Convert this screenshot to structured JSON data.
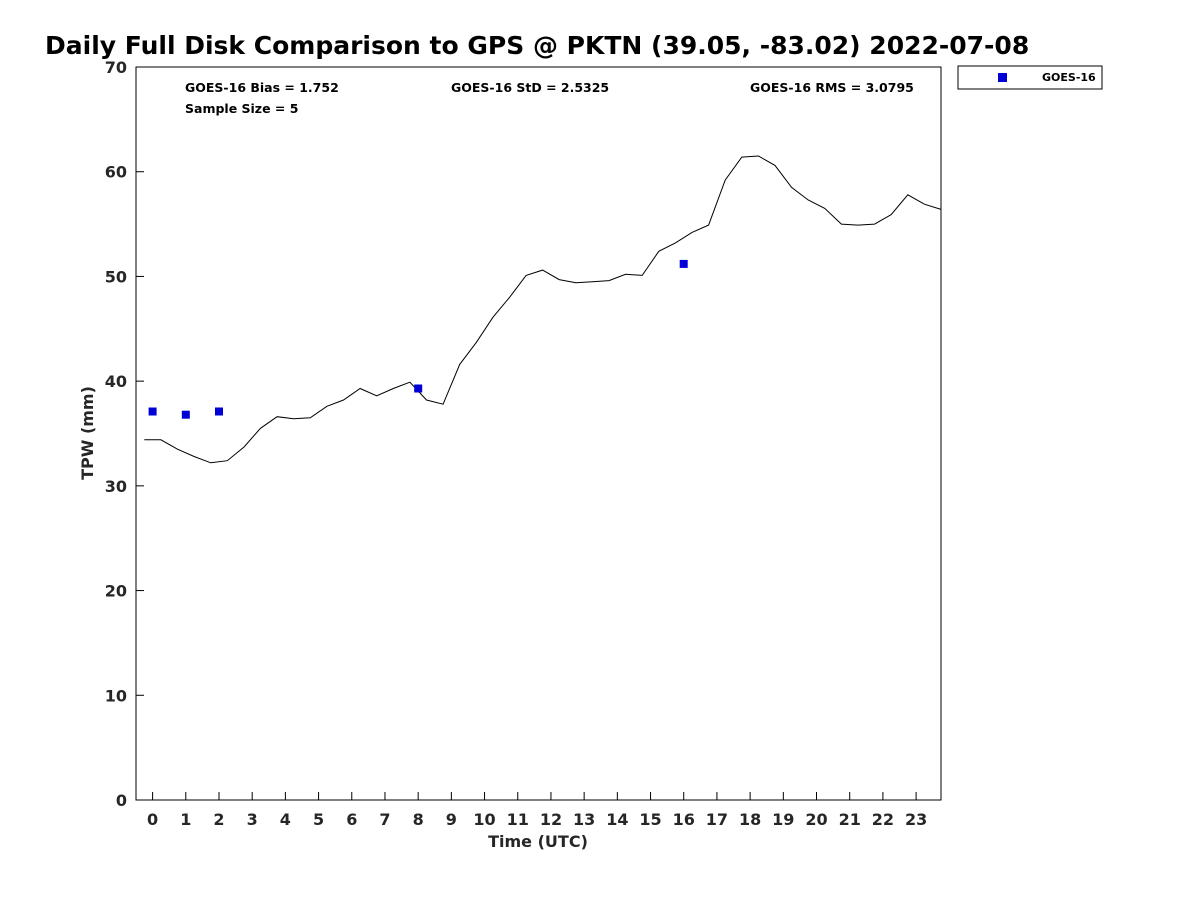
{
  "chart_data": {
    "type": "line",
    "title": "Daily Full Disk Comparison to GPS @ PKTN (39.05, -83.02) 2022-07-08",
    "xlabel": "Time (UTC)",
    "ylabel": "TPW (mm)",
    "xlim": [
      -0.5,
      23.75
    ],
    "ylim": [
      0,
      70
    ],
    "x_ticks": [
      0,
      1,
      2,
      3,
      4,
      5,
      6,
      7,
      8,
      9,
      10,
      11,
      12,
      13,
      14,
      15,
      16,
      17,
      18,
      19,
      20,
      21,
      22,
      23
    ],
    "x_tick_labels": [
      "0",
      "1",
      "2",
      "3",
      "4",
      "5",
      "6",
      "7",
      "8",
      "9",
      "10",
      "11",
      "12",
      "13",
      "14",
      "15",
      "16",
      "17",
      "18",
      "19",
      "20",
      "21",
      "22",
      "23"
    ],
    "y_ticks": [
      0,
      10,
      20,
      30,
      40,
      50,
      60,
      70
    ],
    "y_tick_labels": [
      "0",
      "10",
      "20",
      "30",
      "40",
      "50",
      "60",
      "70"
    ],
    "grid": false,
    "legend_position": "top-right",
    "stats": {
      "bias": "GOES-16 Bias = 1.752",
      "std": "GOES-16 StD = 2.5325",
      "rms": "GOES-16 RMS = 3.0795",
      "sample_size": "Sample Size = 5"
    },
    "series": [
      {
        "style": "line",
        "color": "#000000",
        "x": [
          -0.25,
          0.25,
          0.75,
          1.25,
          1.75,
          2.25,
          2.75,
          3.25,
          3.75,
          4.25,
          4.75,
          5.25,
          5.75,
          6.25,
          6.75,
          7.25,
          7.75,
          8.25,
          8.75,
          9.25,
          9.75,
          10.25,
          10.75,
          11.25,
          11.75,
          12.25,
          12.75,
          13.25,
          13.75,
          14.25,
          14.75,
          15.25,
          15.75,
          16.25,
          16.75,
          17.25,
          17.75,
          18.25,
          18.75,
          19.25,
          19.75,
          20.25,
          20.75,
          21.25,
          21.75,
          22.25,
          22.75,
          23.25,
          23.75
        ],
        "y": [
          34.4,
          34.4,
          33.5,
          32.8,
          32.2,
          32.4,
          33.7,
          35.5,
          36.6,
          36.4,
          36.5,
          37.6,
          38.2,
          39.3,
          38.6,
          39.3,
          39.9,
          38.2,
          37.8,
          41.6,
          43.7,
          46.1,
          48.0,
          50.1,
          50.6,
          49.7,
          49.4,
          49.5,
          49.6,
          50.2,
          50.1,
          52.4,
          53.2,
          54.2,
          54.9,
          59.2,
          61.4,
          61.5,
          60.6,
          58.5,
          57.3,
          56.5,
          55.0,
          54.9,
          55.0,
          55.9,
          57.8,
          56.9,
          56.4
        ]
      },
      {
        "name": "GOES-16",
        "style": "marker",
        "marker": "square",
        "color": "#0000d6",
        "x": [
          0.0,
          1.0,
          2.0,
          8.0,
          16.0
        ],
        "y": [
          37.1,
          36.8,
          37.1,
          39.3,
          51.2
        ]
      }
    ]
  }
}
